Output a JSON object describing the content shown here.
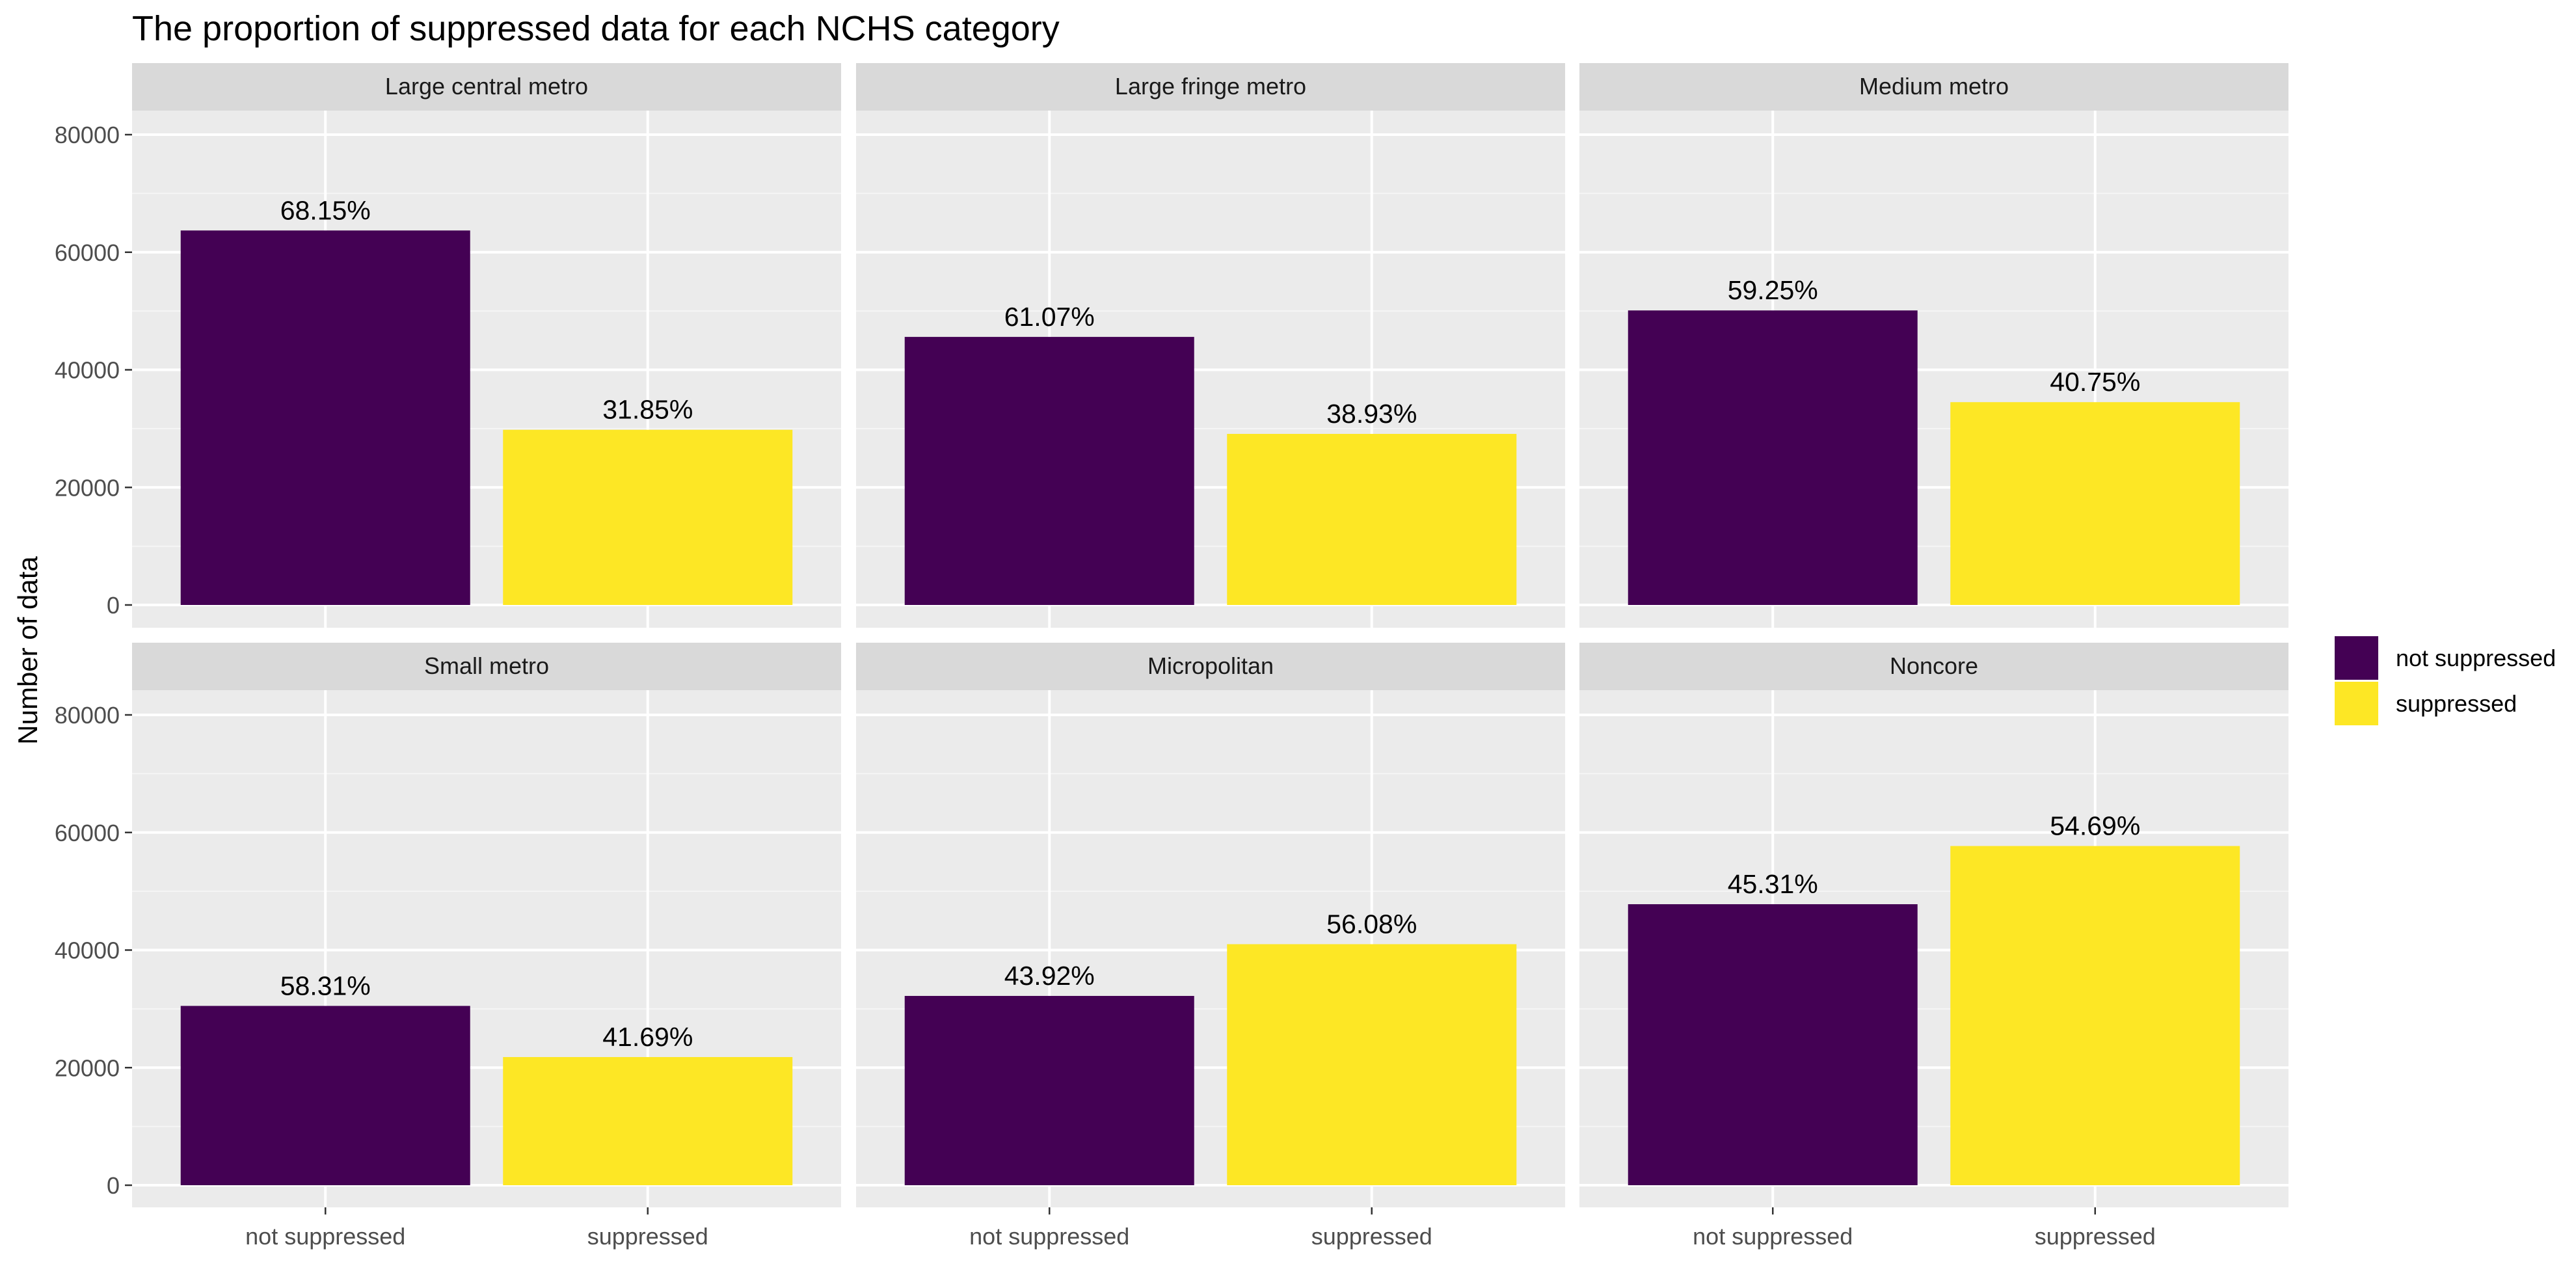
{
  "chart_data": {
    "type": "bar",
    "title": "The proportion of suppressed data for each NCHS category",
    "xlabel": "",
    "ylabel": "Number of data",
    "ylim": [
      0,
      90000
    ],
    "y_ticks": [
      0,
      20000,
      40000,
      60000,
      80000
    ],
    "y_tick_labels": [
      "0",
      "20000",
      "40000",
      "60000",
      "80000"
    ],
    "categories": [
      "not suppressed",
      "suppressed"
    ],
    "grid": true,
    "legend_position": "right",
    "legend": [
      {
        "label": "not suppressed",
        "color": "#440154"
      },
      {
        "label": "suppressed",
        "color": "#FDE725"
      }
    ],
    "facets": [
      {
        "name": "Large central metro",
        "values": [
          63700,
          29800
        ],
        "labels": [
          "68.15%",
          "31.85%"
        ]
      },
      {
        "name": "Large fringe metro",
        "values": [
          45600,
          29100
        ],
        "labels": [
          "61.07%",
          "38.93%"
        ]
      },
      {
        "name": "Medium metro",
        "values": [
          50100,
          34500
        ],
        "labels": [
          "59.25%",
          "40.75%"
        ]
      },
      {
        "name": "Small metro",
        "values": [
          30500,
          21800
        ],
        "labels": [
          "58.31%",
          "41.69%"
        ]
      },
      {
        "name": "Micropolitan",
        "values": [
          32200,
          41000
        ],
        "labels": [
          "43.92%",
          "56.08%"
        ]
      },
      {
        "name": "Noncore",
        "values": [
          47800,
          57700
        ],
        "labels": [
          "45.31%",
          "54.69%"
        ]
      }
    ]
  }
}
